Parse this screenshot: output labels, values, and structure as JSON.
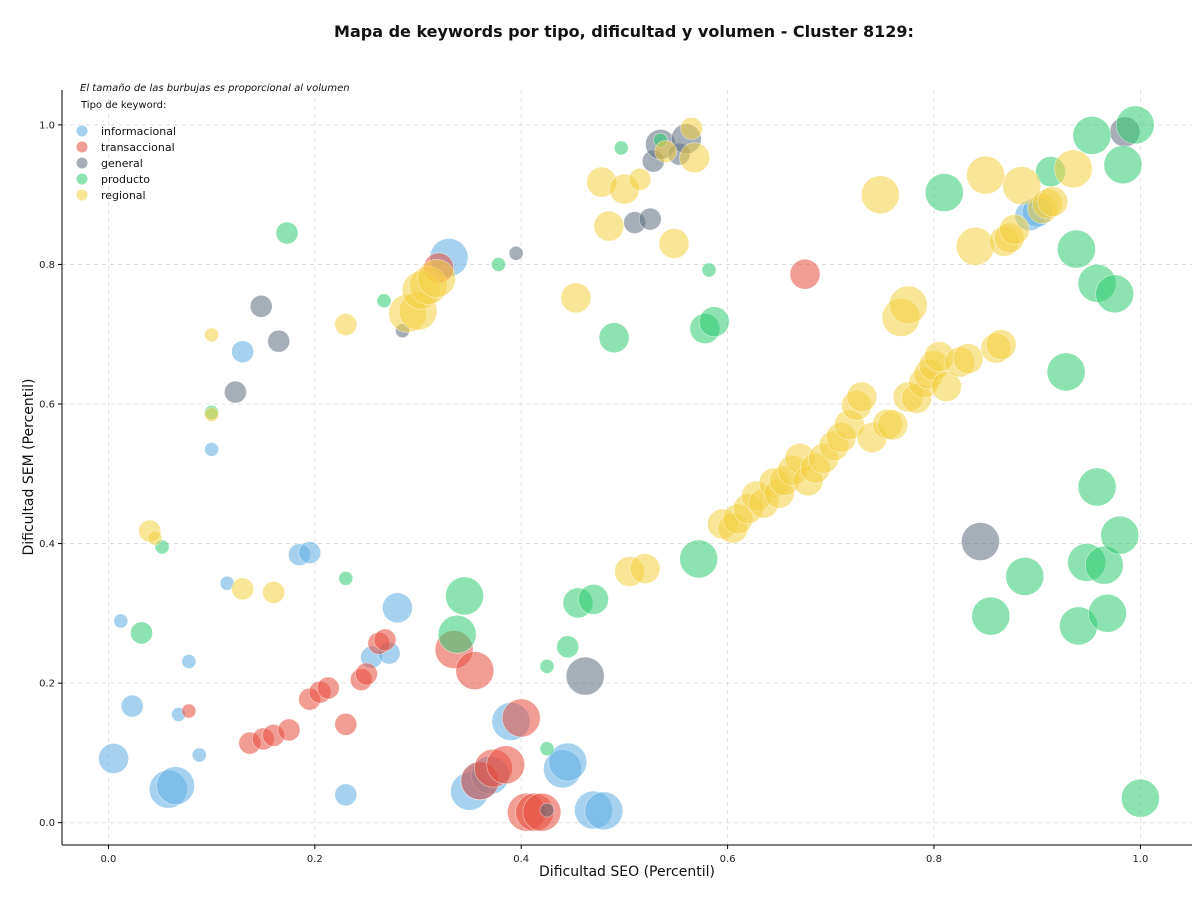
{
  "chart_data": {
    "type": "scatter",
    "title": "Mapa de keywords por tipo, dificultad y volumen - Cluster 8129:",
    "xlabel": "Dificultad SEO (Percentil)",
    "ylabel": "Dificultad SEM (Percentil)",
    "xlim": [
      -0.045,
      1.05
    ],
    "ylim": [
      -0.032,
      1.05
    ],
    "xticks": [
      "0.0",
      "0.2",
      "0.4",
      "0.6",
      "0.8",
      "1.0"
    ],
    "yticks": [
      "0.0",
      "0.2",
      "0.4",
      "0.6",
      "0.8",
      "1.0"
    ],
    "grid": true,
    "note": "El tamaño de las burbujas es proporcional al volumen",
    "legend_title": "Tipo de keyword:",
    "legend_position": "top-left",
    "size_encoding": "bubble area proportional to search volume (relative scale)",
    "series": [
      {
        "name": "informacional",
        "color": "#5DADE2",
        "points": [
          [
            0.005,
            0.092,
            3
          ],
          [
            0.058,
            0.048,
            4
          ],
          [
            0.065,
            0.053,
            4
          ],
          [
            0.023,
            0.167,
            2
          ],
          [
            0.012,
            0.289,
            1
          ],
          [
            0.068,
            0.155,
            1
          ],
          [
            0.078,
            0.231,
            1
          ],
          [
            0.088,
            0.097,
            1
          ],
          [
            0.1,
            0.535,
            1
          ],
          [
            0.115,
            0.343,
            1
          ],
          [
            0.13,
            0.675,
            2
          ],
          [
            0.185,
            0.384,
            2
          ],
          [
            0.195,
            0.387,
            2
          ],
          [
            0.23,
            0.04,
            2
          ],
          [
            0.255,
            0.237,
            2
          ],
          [
            0.272,
            0.243,
            2
          ],
          [
            0.28,
            0.308,
            3
          ],
          [
            0.33,
            0.81,
            4
          ],
          [
            0.35,
            0.045,
            4
          ],
          [
            0.36,
            0.06,
            4
          ],
          [
            0.37,
            0.068,
            4
          ],
          [
            0.39,
            0.145,
            4
          ],
          [
            0.44,
            0.077,
            4
          ],
          [
            0.445,
            0.087,
            4
          ],
          [
            0.47,
            0.018,
            4
          ],
          [
            0.48,
            0.017,
            4
          ],
          [
            0.893,
            0.87,
            3
          ],
          [
            0.9,
            0.875,
            3
          ]
        ]
      },
      {
        "name": "transaccional",
        "color": "#E74C3C",
        "points": [
          [
            0.078,
            0.16,
            1
          ],
          [
            0.137,
            0.114,
            2
          ],
          [
            0.15,
            0.12,
            2
          ],
          [
            0.16,
            0.125,
            2
          ],
          [
            0.175,
            0.133,
            2
          ],
          [
            0.195,
            0.177,
            2
          ],
          [
            0.205,
            0.187,
            2
          ],
          [
            0.213,
            0.193,
            2
          ],
          [
            0.23,
            0.141,
            2
          ],
          [
            0.245,
            0.205,
            2
          ],
          [
            0.25,
            0.213,
            2
          ],
          [
            0.262,
            0.257,
            2
          ],
          [
            0.268,
            0.262,
            2
          ],
          [
            0.32,
            0.795,
            3
          ],
          [
            0.335,
            0.248,
            4
          ],
          [
            0.355,
            0.218,
            4
          ],
          [
            0.36,
            0.06,
            4
          ],
          [
            0.373,
            0.078,
            4
          ],
          [
            0.385,
            0.083,
            4
          ],
          [
            0.4,
            0.15,
            4
          ],
          [
            0.405,
            0.015,
            4
          ],
          [
            0.413,
            0.015,
            4
          ],
          [
            0.42,
            0.015,
            4
          ],
          [
            0.675,
            0.786,
            3
          ]
        ]
      },
      {
        "name": "general",
        "color": "#5D6D7E",
        "points": [
          [
            0.123,
            0.617,
            2
          ],
          [
            0.148,
            0.74,
            2
          ],
          [
            0.165,
            0.69,
            2
          ],
          [
            0.285,
            0.705,
            1
          ],
          [
            0.395,
            0.816,
            1
          ],
          [
            0.425,
            0.018,
            1
          ],
          [
            0.462,
            0.21,
            4
          ],
          [
            0.51,
            0.86,
            2
          ],
          [
            0.525,
            0.865,
            2
          ],
          [
            0.528,
            0.948,
            2
          ],
          [
            0.535,
            0.972,
            3
          ],
          [
            0.553,
            0.958,
            2
          ],
          [
            0.56,
            0.98,
            3
          ],
          [
            0.845,
            0.403,
            4
          ],
          [
            0.985,
            0.99,
            3
          ]
        ]
      },
      {
        "name": "producto",
        "color": "#2ECC71",
        "points": [
          [
            0.032,
            0.272,
            2
          ],
          [
            0.052,
            0.395,
            1
          ],
          [
            0.1,
            0.588,
            1
          ],
          [
            0.173,
            0.845,
            2
          ],
          [
            0.23,
            0.35,
            1
          ],
          [
            0.267,
            0.748,
            1
          ],
          [
            0.338,
            0.27,
            4
          ],
          [
            0.345,
            0.325,
            4
          ],
          [
            0.378,
            0.8,
            1
          ],
          [
            0.425,
            0.224,
            1
          ],
          [
            0.425,
            0.106,
            1
          ],
          [
            0.445,
            0.252,
            2
          ],
          [
            0.455,
            0.315,
            3
          ],
          [
            0.47,
            0.32,
            3
          ],
          [
            0.49,
            0.695,
            3
          ],
          [
            0.497,
            0.967,
            1
          ],
          [
            0.535,
            0.978,
            1
          ],
          [
            0.572,
            0.378,
            4
          ],
          [
            0.578,
            0.708,
            3
          ],
          [
            0.582,
            0.792,
            1
          ],
          [
            0.587,
            0.718,
            3
          ],
          [
            0.81,
            0.903,
            4
          ],
          [
            0.855,
            0.296,
            4
          ],
          [
            0.888,
            0.353,
            4
          ],
          [
            0.913,
            0.933,
            3
          ],
          [
            0.928,
            0.646,
            4
          ],
          [
            0.938,
            0.822,
            4
          ],
          [
            0.94,
            0.282,
            4
          ],
          [
            0.948,
            0.373,
            4
          ],
          [
            0.953,
            0.985,
            4
          ],
          [
            0.958,
            0.773,
            4
          ],
          [
            0.958,
            0.481,
            4
          ],
          [
            0.965,
            0.369,
            4
          ],
          [
            0.968,
            0.3,
            4
          ],
          [
            0.975,
            0.758,
            4
          ],
          [
            0.983,
            0.943,
            4
          ],
          [
            0.98,
            0.412,
            4
          ],
          [
            0.995,
            1.0,
            4
          ],
          [
            1.0,
            0.035,
            4
          ]
        ]
      },
      {
        "name": "regional",
        "color": "#F4D03F",
        "points": [
          [
            0.04,
            0.418,
            2
          ],
          [
            0.045,
            0.408,
            1
          ],
          [
            0.1,
            0.585,
            1
          ],
          [
            0.1,
            0.699,
            1
          ],
          [
            0.13,
            0.335,
            2
          ],
          [
            0.16,
            0.33,
            2
          ],
          [
            0.23,
            0.714,
            2
          ],
          [
            0.29,
            0.73,
            4
          ],
          [
            0.3,
            0.733,
            4
          ],
          [
            0.303,
            0.763,
            4
          ],
          [
            0.31,
            0.77,
            4
          ],
          [
            0.318,
            0.78,
            4
          ],
          [
            0.453,
            0.752,
            3
          ],
          [
            0.478,
            0.918,
            3
          ],
          [
            0.485,
            0.855,
            3
          ],
          [
            0.5,
            0.908,
            3
          ],
          [
            0.505,
            0.36,
            3
          ],
          [
            0.515,
            0.922,
            2
          ],
          [
            0.52,
            0.364,
            3
          ],
          [
            0.54,
            0.962,
            2
          ],
          [
            0.548,
            0.83,
            3
          ],
          [
            0.565,
            0.995,
            2
          ],
          [
            0.568,
            0.953,
            3
          ],
          [
            0.595,
            0.428,
            3
          ],
          [
            0.605,
            0.422,
            3
          ],
          [
            0.61,
            0.435,
            3
          ],
          [
            0.62,
            0.45,
            3
          ],
          [
            0.628,
            0.468,
            3
          ],
          [
            0.635,
            0.458,
            3
          ],
          [
            0.645,
            0.487,
            3
          ],
          [
            0.65,
            0.472,
            3
          ],
          [
            0.655,
            0.49,
            3
          ],
          [
            0.663,
            0.505,
            3
          ],
          [
            0.67,
            0.522,
            3
          ],
          [
            0.678,
            0.49,
            3
          ],
          [
            0.685,
            0.508,
            3
          ],
          [
            0.693,
            0.522,
            3
          ],
          [
            0.703,
            0.54,
            3
          ],
          [
            0.71,
            0.552,
            3
          ],
          [
            0.718,
            0.57,
            3
          ],
          [
            0.725,
            0.598,
            3
          ],
          [
            0.73,
            0.61,
            3
          ],
          [
            0.74,
            0.552,
            3
          ],
          [
            0.748,
            0.9,
            4
          ],
          [
            0.755,
            0.571,
            3
          ],
          [
            0.76,
            0.57,
            3
          ],
          [
            0.768,
            0.724,
            4
          ],
          [
            0.775,
            0.742,
            4
          ],
          [
            0.775,
            0.61,
            3
          ],
          [
            0.783,
            0.608,
            3
          ],
          [
            0.79,
            0.63,
            3
          ],
          [
            0.795,
            0.643,
            3
          ],
          [
            0.8,
            0.655,
            3
          ],
          [
            0.805,
            0.668,
            3
          ],
          [
            0.812,
            0.625,
            3
          ],
          [
            0.825,
            0.66,
            3
          ],
          [
            0.833,
            0.665,
            3
          ],
          [
            0.84,
            0.826,
            4
          ],
          [
            0.85,
            0.928,
            4
          ],
          [
            0.86,
            0.68,
            3
          ],
          [
            0.865,
            0.685,
            3
          ],
          [
            0.868,
            0.833,
            3
          ],
          [
            0.873,
            0.838,
            3
          ],
          [
            0.878,
            0.85,
            3
          ],
          [
            0.885,
            0.913,
            4
          ],
          [
            0.905,
            0.88,
            3
          ],
          [
            0.91,
            0.887,
            3
          ],
          [
            0.915,
            0.89,
            3
          ],
          [
            0.935,
            0.937,
            4
          ]
        ]
      }
    ]
  }
}
